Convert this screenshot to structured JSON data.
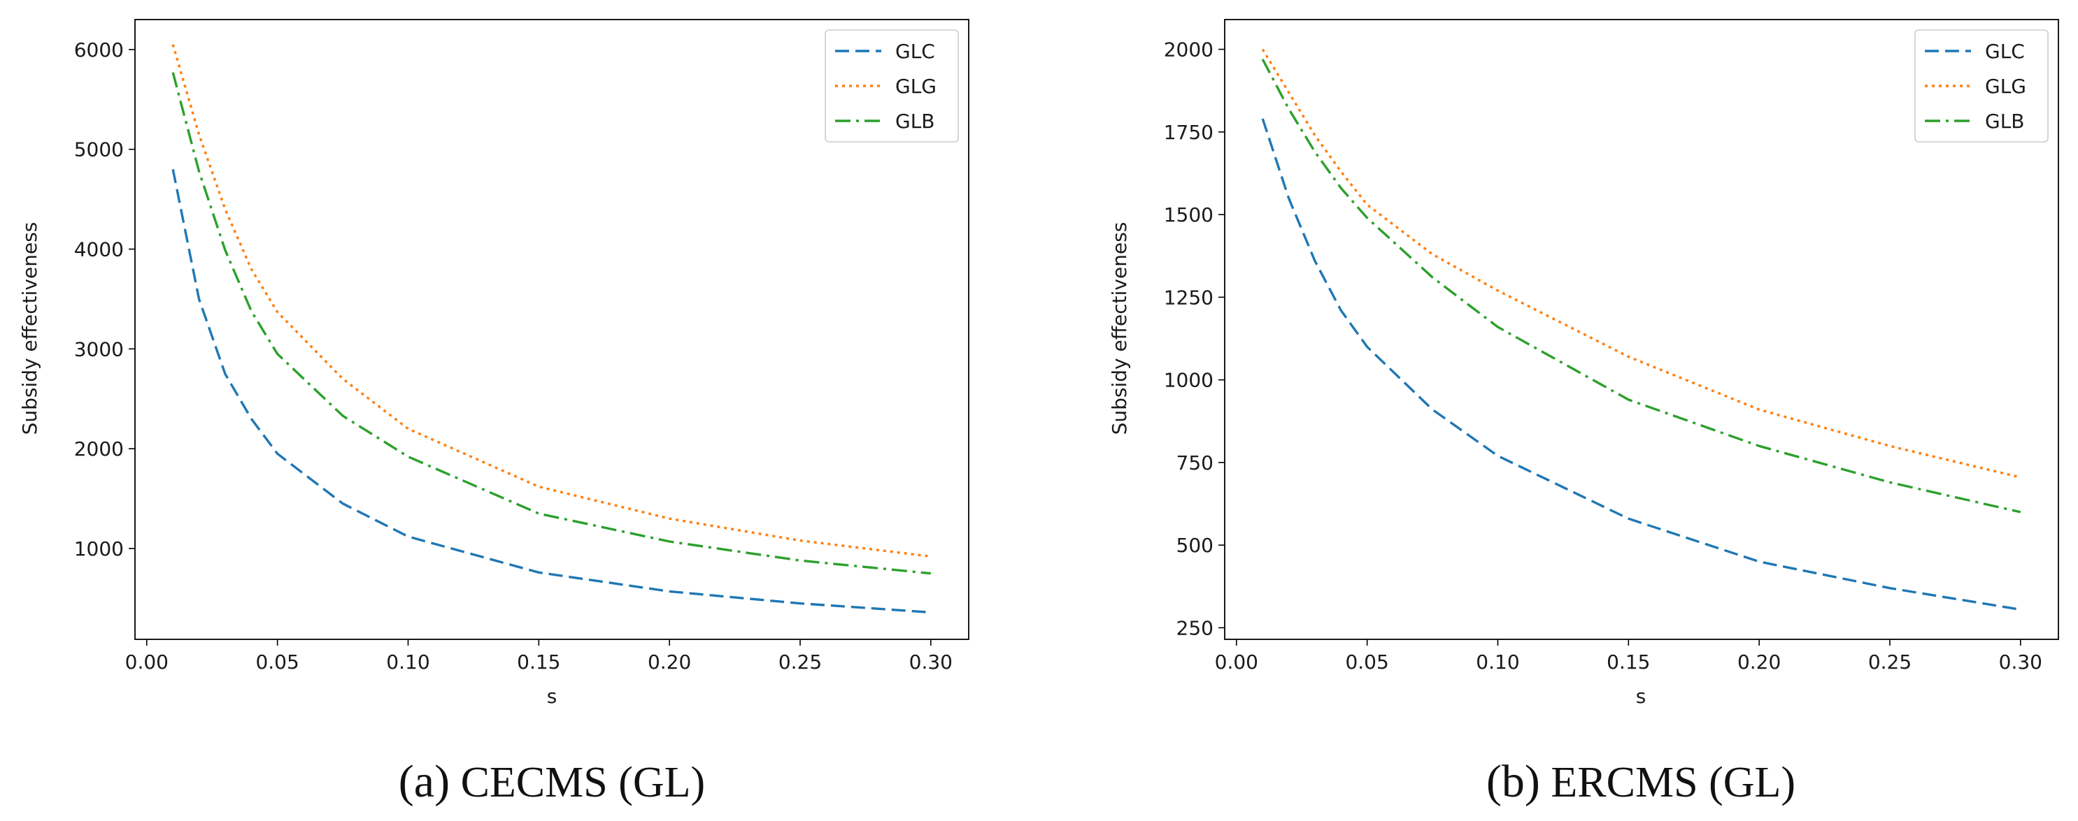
{
  "figure": {
    "colors": {
      "GLC": "#1f77b4",
      "GLG": "#ff7f0e",
      "GLB": "#2ca02c",
      "axes": "#000000",
      "text": "#1a1a1a"
    }
  },
  "chart_data": [
    {
      "type": "line",
      "panel_label": "(a)",
      "caption": "CECMS (GL)",
      "xlabel": "s",
      "ylabel": "Subsidy effectiveness",
      "xlim": [
        -0.0045,
        0.3145
      ],
      "ylim": [
        90,
        6300
      ],
      "xticks": [
        0.0,
        0.05,
        0.1,
        0.15,
        0.2,
        0.25,
        0.3
      ],
      "xtick_labels": [
        "0.00",
        "0.05",
        "0.10",
        "0.15",
        "0.20",
        "0.25",
        "0.30"
      ],
      "yticks": [
        1000,
        2000,
        3000,
        4000,
        5000,
        6000
      ],
      "ytick_labels": [
        "1000",
        "2000",
        "3000",
        "4000",
        "5000",
        "6000"
      ],
      "grid": false,
      "legend": "top-right",
      "x": [
        0.01,
        0.02,
        0.03,
        0.04,
        0.05,
        0.075,
        0.1,
        0.15,
        0.2,
        0.25,
        0.3
      ],
      "series": [
        {
          "name": "GLC",
          "style": "dashed",
          "values": [
            4800,
            3500,
            2750,
            2300,
            1950,
            1450,
            1120,
            760,
            570,
            450,
            360
          ]
        },
        {
          "name": "GLG",
          "style": "dotted",
          "values": [
            6050,
            5150,
            4400,
            3800,
            3370,
            2700,
            2200,
            1620,
            1300,
            1080,
            920
          ]
        },
        {
          "name": "GLB",
          "style": "dashdot",
          "values": [
            5770,
            4780,
            3990,
            3380,
            2950,
            2330,
            1920,
            1350,
            1070,
            880,
            750
          ]
        }
      ]
    },
    {
      "type": "line",
      "panel_label": "(b)",
      "caption": "ERCMS (GL)",
      "xlabel": "s",
      "ylabel": "Subsidy effectiveness",
      "xlim": [
        -0.0045,
        0.3145
      ],
      "ylim": [
        215,
        2090
      ],
      "xticks": [
        0.0,
        0.05,
        0.1,
        0.15,
        0.2,
        0.25,
        0.3
      ],
      "xtick_labels": [
        "0.00",
        "0.05",
        "0.10",
        "0.15",
        "0.20",
        "0.25",
        "0.30"
      ],
      "yticks": [
        250,
        500,
        750,
        1000,
        1250,
        1500,
        1750,
        2000
      ],
      "ytick_labels": [
        "250",
        "500",
        "750",
        "1000",
        "1250",
        "1500",
        "1750",
        "2000"
      ],
      "grid": false,
      "legend": "top-right",
      "x": [
        0.01,
        0.02,
        0.03,
        0.04,
        0.05,
        0.075,
        0.1,
        0.15,
        0.2,
        0.25,
        0.3
      ],
      "series": [
        {
          "name": "GLC",
          "style": "dashed",
          "values": [
            1790,
            1550,
            1360,
            1210,
            1100,
            910,
            770,
            580,
            450,
            370,
            305
          ]
        },
        {
          "name": "GLG",
          "style": "dotted",
          "values": [
            2000,
            1870,
            1740,
            1630,
            1530,
            1380,
            1270,
            1070,
            910,
            800,
            705
          ]
        },
        {
          "name": "GLB",
          "style": "dashdot",
          "values": [
            1970,
            1820,
            1690,
            1580,
            1490,
            1310,
            1160,
            940,
            800,
            690,
            600
          ]
        }
      ]
    }
  ]
}
